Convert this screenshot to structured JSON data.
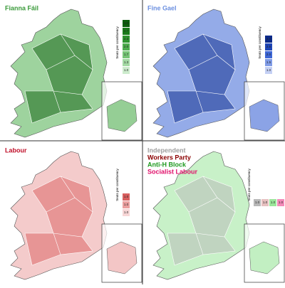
{
  "panels": [
    {
      "titles": [
        {
          "text": "Fianna Fáil",
          "color": "#3a9a3a"
        }
      ],
      "legend_title": "Seats per constituency",
      "legend": [
        {
          "label": "3.0",
          "color": "#0b5e0b"
        },
        {
          "label": "2.7",
          "color": "#1a7a1a"
        },
        {
          "label": "2.3",
          "color": "#2f942f"
        },
        {
          "label": "2.0",
          "color": "#4fae4f"
        },
        {
          "label": "1.7",
          "color": "#76c476"
        },
        {
          "label": "1.3",
          "color": "#a3d9a3"
        },
        {
          "label": "1.0",
          "color": "#cdeccd"
        }
      ]
    },
    {
      "titles": [
        {
          "text": "Fine Gael",
          "color": "#6b8fe0"
        }
      ],
      "legend_title": "Seats per constituency",
      "legend": [
        {
          "label": "3.0",
          "color": "#0a2a8a"
        },
        {
          "label": "2.5",
          "color": "#1f46b8"
        },
        {
          "label": "2.0",
          "color": "#3d66d6"
        },
        {
          "label": "1.5",
          "color": "#7f9be6"
        },
        {
          "label": "1.0",
          "color": "#c4d0f4"
        }
      ]
    },
    {
      "titles": [
        {
          "text": "Labour",
          "color": "#c0102a"
        }
      ],
      "legend_title": "Seats per constituency",
      "legend": [
        {
          "label": "1.0",
          "color": "#d96060"
        },
        {
          "label": "1.0",
          "color": "#eba0a0"
        },
        {
          "label": "1.0",
          "color": "#f7d6d6"
        }
      ]
    },
    {
      "titles": [
        {
          "text": "Independent",
          "color": "#a0a0a0"
        },
        {
          "text": "Workers Party",
          "color": "#8b0000"
        },
        {
          "text": "Anti-H Block",
          "color": "#1f9a1f"
        },
        {
          "text": "Socialist Labour",
          "color": "#e0106a"
        }
      ],
      "legend_title": "Seats per constituency",
      "legend": [
        {
          "label": "1.0",
          "color": "#b8b8b8"
        },
        {
          "label": "1.0",
          "color": "#e6c0c0"
        },
        {
          "label": "1.0",
          "color": "#9ae59a"
        },
        {
          "label": "1.0",
          "color": "#f28ab8"
        }
      ]
    }
  ]
}
